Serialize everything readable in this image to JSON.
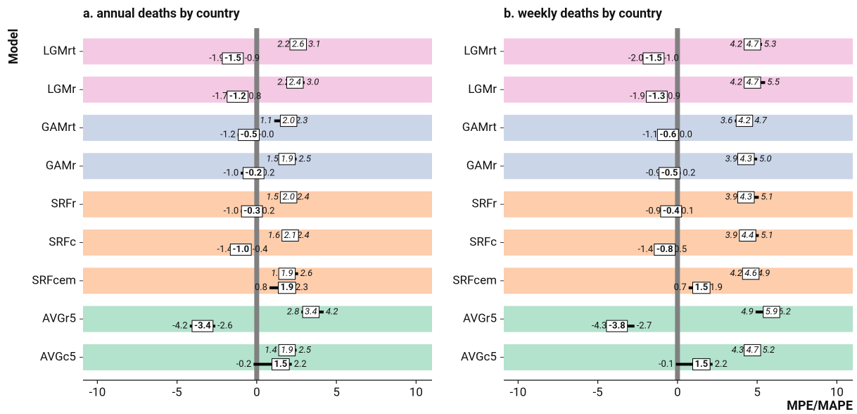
{
  "chart_data": [
    {
      "type": "interval",
      "title": "a. annual deaths by country",
      "ylabel": "Model",
      "categories": [
        "LGMrt",
        "LGMr",
        "GAMrt",
        "GAMr",
        "SRFr",
        "SRFc",
        "SRFcem",
        "AVGr5",
        "AVGc5"
      ],
      "colors": [
        "#f4c9e4",
        "#f4c9e4",
        "#cbd5e8",
        "#cbd5e8",
        "#fdcdac",
        "#fdcdac",
        "#fdcdac",
        "#b3e2cd",
        "#b3e2cd"
      ],
      "xlim": [
        -10.9,
        11
      ],
      "xticks": [
        -10,
        -5,
        0,
        5,
        10
      ],
      "series": [
        {
          "font_style": "italic",
          "low": [
            2.2,
            2.2,
            1.1,
            1.5,
            1.5,
            1.6,
            1.8,
            2.8,
            1.4
          ],
          "low_labels": [
            "2.2",
            "2.2",
            "1.1",
            "1.5",
            "1.5",
            "1.6",
            "1.8",
            "2.8",
            "1.4"
          ],
          "values": [
            2.6,
            2.4,
            2.0,
            1.9,
            2.0,
            2.1,
            1.9,
            3.4,
            1.9
          ],
          "value_labels": [
            "2.6",
            "2.4",
            "2.0",
            "1.9",
            "2.0",
            "2.1",
            "1.9",
            "3.4",
            "1.9"
          ],
          "high": [
            3.1,
            3.0,
            2.3,
            2.5,
            2.4,
            2.4,
            2.6,
            4.2,
            2.5
          ],
          "high_labels": [
            "3.1",
            "3.0",
            "2.3",
            "2.5",
            "2.4",
            "2.4",
            "2.6",
            "4.2",
            "2.5"
          ]
        },
        {
          "font_style": "bold",
          "low": [
            -1.9,
            -1.7,
            -1.2,
            -1.0,
            -1.0,
            -1.4,
            0.8,
            -4.2,
            -0.2
          ],
          "low_labels": [
            "-1.9",
            "-1.7",
            "-1.2",
            "-1.0",
            "-1.0",
            "-1.4",
            "0.8",
            "-4.2",
            "-0.2"
          ],
          "values": [
            -1.5,
            -1.2,
            -0.5,
            -0.2,
            -0.3,
            -1.0,
            1.9,
            -3.4,
            1.5
          ],
          "value_labels": [
            "-1.5",
            "-1.2",
            "-0.5",
            "-0.2",
            "-0.3",
            "-1.0",
            "1.9",
            "-3.4",
            "1.5"
          ],
          "high": [
            -0.9,
            -0.8,
            0,
            0.2,
            0.2,
            -0.4,
            2.3,
            -2.6,
            2.2
          ],
          "high_labels": [
            "-0.9",
            "-0.8",
            "-0.0",
            "0.2",
            "0.2",
            "-0.4",
            "2.3",
            "-2.6",
            "2.2"
          ]
        }
      ]
    },
    {
      "type": "interval",
      "title": "b. weekly deaths by country",
      "xlabel": "MPE/MAPE",
      "categories": [
        "LGMrt",
        "LGMr",
        "GAMrt",
        "GAMr",
        "SRFr",
        "SRFc",
        "SRFcem",
        "AVGr5",
        "AVGc5"
      ],
      "colors": [
        "#f4c9e4",
        "#f4c9e4",
        "#cbd5e8",
        "#cbd5e8",
        "#fdcdac",
        "#fdcdac",
        "#fdcdac",
        "#b3e2cd",
        "#b3e2cd"
      ],
      "xlim": [
        -10.9,
        11
      ],
      "xticks": [
        -10,
        -5,
        0,
        5,
        10
      ],
      "series": [
        {
          "font_style": "italic",
          "low": [
            4.2,
            4.2,
            3.6,
            3.9,
            3.9,
            3.9,
            4.2,
            4.9,
            4.3
          ],
          "low_labels": [
            "4.2",
            "4.2",
            "3.6",
            "3.9",
            "3.9",
            "3.9",
            "4.2",
            "4.9",
            "4.3"
          ],
          "values": [
            4.7,
            4.7,
            4.2,
            4.3,
            4.3,
            4.4,
            4.6,
            5.9,
            4.7
          ],
          "value_labels": [
            "4.7",
            "4.7",
            "4.2",
            "4.3",
            "4.3",
            "4.4",
            "4.6",
            "5.9",
            "4.7"
          ],
          "high": [
            5.3,
            5.5,
            4.7,
            5.0,
            5.1,
            5.1,
            4.9,
            6.2,
            5.2
          ],
          "high_labels": [
            "5.3",
            "5.5",
            "4.7",
            "5.0",
            "5.1",
            "5.1",
            "4.9",
            "6.2",
            "5.2"
          ]
        },
        {
          "font_style": "bold",
          "low": [
            -2.0,
            -1.9,
            -1.1,
            -0.9,
            -0.9,
            -1.4,
            0.7,
            -4.3,
            -0.1
          ],
          "low_labels": [
            "-2.0",
            "-1.9",
            "-1.1",
            "-0.9",
            "-0.9",
            "-1.4",
            "0.7",
            "-4.3",
            "-0.1"
          ],
          "values": [
            -1.5,
            -1.3,
            -0.6,
            -0.5,
            -0.4,
            -0.8,
            1.5,
            -3.8,
            1.5
          ],
          "value_labels": [
            "-1.5",
            "-1.3",
            "-0.6",
            "-0.5",
            "-0.4",
            "-0.8",
            "1.5",
            "-3.8",
            "1.5"
          ],
          "high": [
            -1.0,
            -0.9,
            0,
            0.2,
            0.1,
            -0.5,
            1.9,
            -2.7,
            2.2
          ],
          "high_labels": [
            "-1.0",
            "-0.9",
            "0.0",
            "0.2",
            "0.1",
            "-0.5",
            "1.9",
            "-2.7",
            "2.2"
          ]
        }
      ]
    }
  ]
}
